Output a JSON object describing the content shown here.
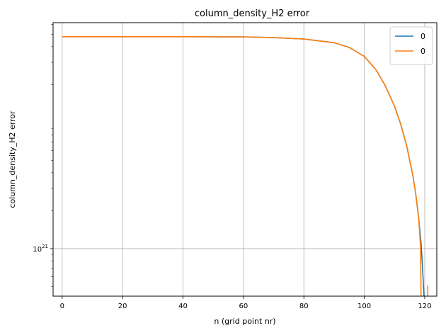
{
  "chart_data": {
    "type": "line",
    "title": "column_density_H2 error",
    "xlabel": "n (grid point nr)",
    "ylabel": "column_density_H2 error",
    "xlim": [
      -3,
      124
    ],
    "x_ticks": [
      0,
      20,
      40,
      60,
      80,
      100,
      120
    ],
    "y_scale": "log",
    "ylim": [
      4.2e+20,
      6.2e+22
    ],
    "y_major_ticks": [
      {
        "value": 1e+21,
        "label_base": "10",
        "label_exp": "21"
      }
    ],
    "y_minor_ticks": [
      5e+20,
      6e+20,
      7e+20,
      8e+20,
      9e+20,
      2e+21,
      3e+21,
      4e+21,
      5e+21,
      6e+21,
      7e+21,
      8e+21,
      9e+21,
      2e+22,
      3e+22,
      4e+22,
      5e+22,
      6e+22
    ],
    "grid": true,
    "legend": {
      "placement": "top-right"
    },
    "series": [
      {
        "name": "0",
        "color": "#1f77b4",
        "points": [
          [
            0,
            4.8e+22
          ],
          [
            20,
            4.8e+22
          ],
          [
            40,
            4.8e+22
          ],
          [
            60,
            4.78e+22
          ],
          [
            70,
            4.72e+22
          ],
          [
            80,
            4.6e+22
          ],
          [
            90,
            4.3e+22
          ],
          [
            95,
            3.95e+22
          ],
          [
            100,
            3.35e+22
          ],
          [
            104,
            2.6e+22
          ],
          [
            107,
            1.95e+22
          ],
          [
            110,
            1.35e+22
          ],
          [
            112,
            9.8e+21
          ],
          [
            114,
            6.6e+21
          ],
          [
            116,
            3.9e+21
          ],
          [
            117,
            2.75e+21
          ],
          [
            118,
            1.75e+21
          ],
          [
            118.8,
            1.1e+21
          ],
          [
            119.3,
            7e+20
          ],
          [
            119.8,
            4e+20
          ]
        ]
      },
      {
        "name": "0",
        "color": "#ff7f0e",
        "points": [
          [
            0,
            4.8e+22
          ],
          [
            20,
            4.8e+22
          ],
          [
            40,
            4.8e+22
          ],
          [
            60,
            4.78e+22
          ],
          [
            70,
            4.72e+22
          ],
          [
            80,
            4.6e+22
          ],
          [
            90,
            4.3e+22
          ],
          [
            95,
            3.95e+22
          ],
          [
            100,
            3.35e+22
          ],
          [
            104,
            2.6e+22
          ],
          [
            107,
            1.95e+22
          ],
          [
            110,
            1.35e+22
          ],
          [
            112,
            9.8e+21
          ],
          [
            114,
            6.6e+21
          ],
          [
            116,
            3.9e+21
          ],
          [
            117,
            2.75e+21
          ],
          [
            118,
            1.75e+21
          ],
          [
            118.6,
            1.05e+21
          ],
          [
            118.8,
            4e+20
          ]
        ],
        "extra_segment": [
          [
            121,
            4e+20
          ],
          [
            121,
            5.1e+20
          ]
        ]
      }
    ]
  }
}
